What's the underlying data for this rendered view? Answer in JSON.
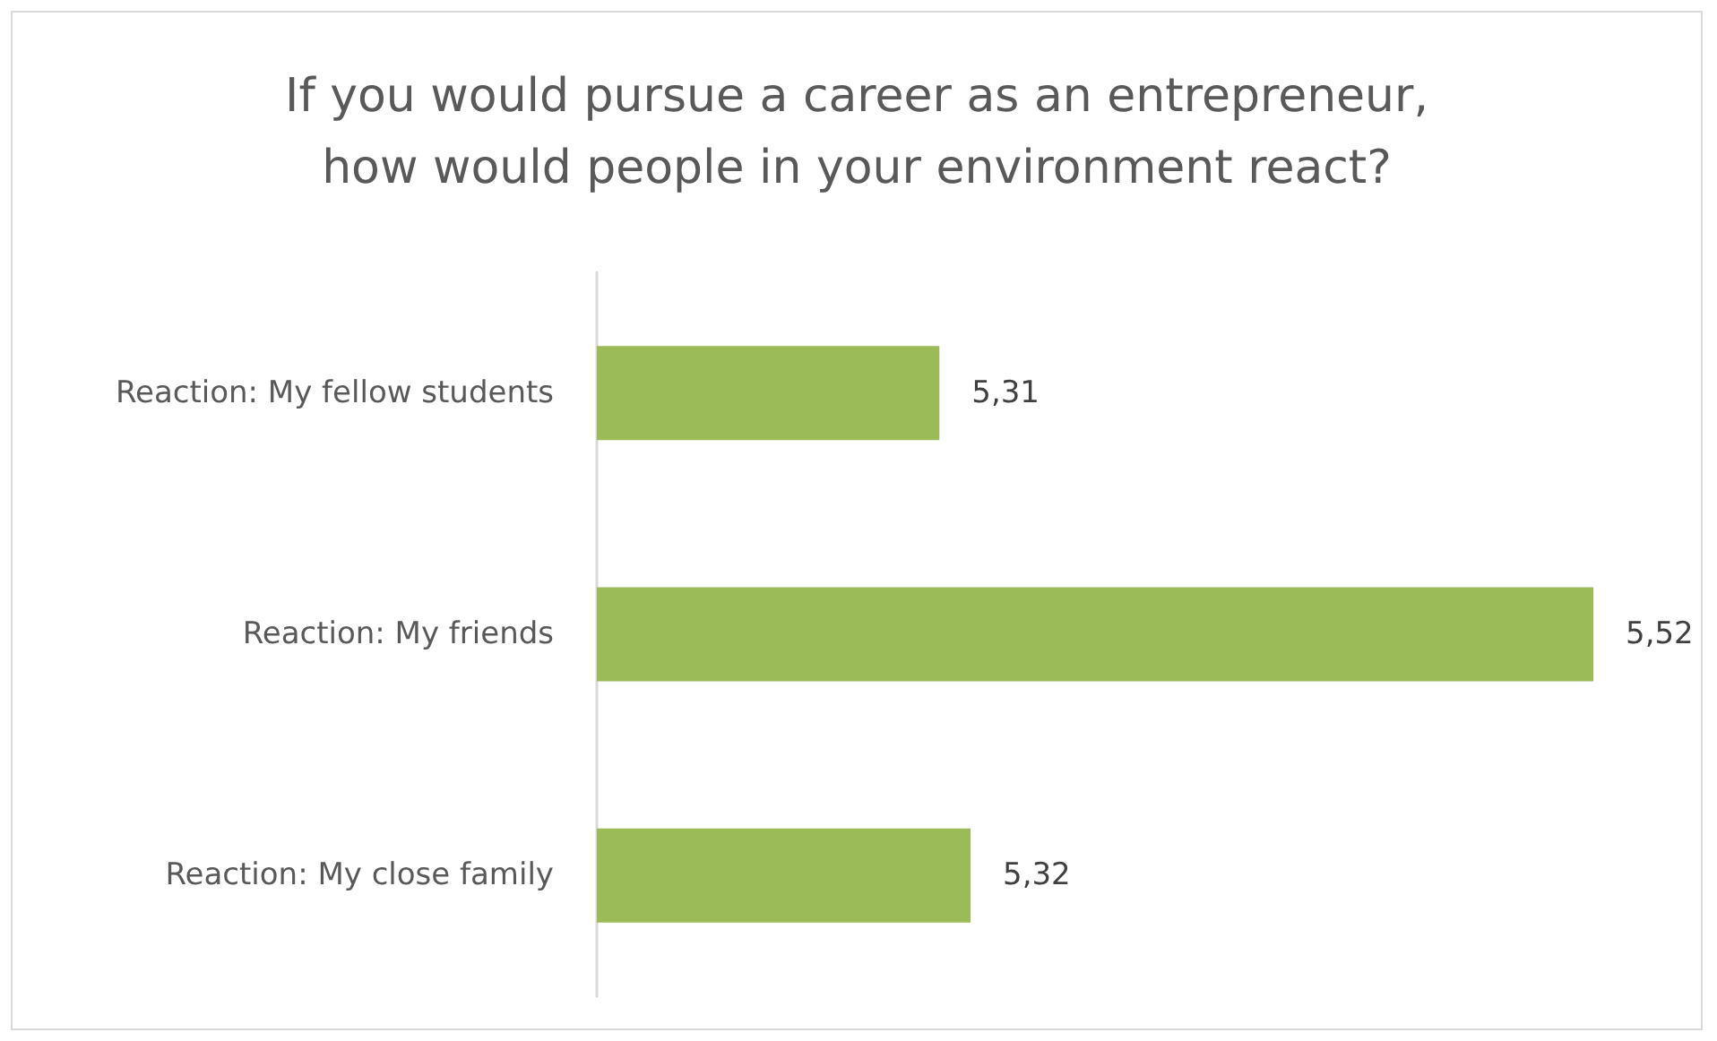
{
  "chart_data": {
    "type": "bar",
    "orientation": "horizontal",
    "title": "If you would pursue a career as an entrepreneur,\nhow would people in your environment react?",
    "categories": [
      "Reaction: My fellow students",
      "Reaction: My friends",
      "Reaction: My close family"
    ],
    "values": [
      5.31,
      5.52,
      5.32
    ],
    "value_labels": [
      "5,31",
      "5,52",
      "5,32"
    ],
    "color": "#9bbb59",
    "xlim": [
      5.2,
      5.52
    ]
  }
}
